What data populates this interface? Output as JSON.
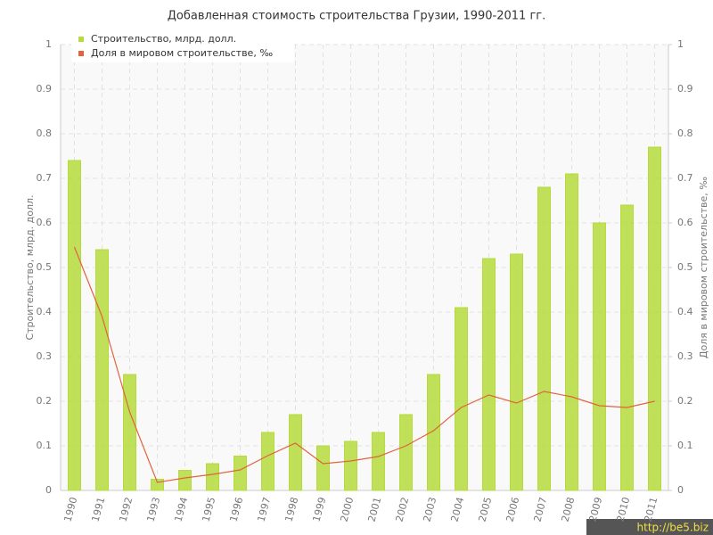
{
  "chart_data": {
    "type": "bar-line",
    "title": "Добавленная стоимость строительства Грузии, 1990-2011 гг.",
    "categories": [
      "1990",
      "1991",
      "1992",
      "1993",
      "1994",
      "1995",
      "1996",
      "1997",
      "1998",
      "1999",
      "2000",
      "2001",
      "2002",
      "2003",
      "2004",
      "2005",
      "2006",
      "2007",
      "2008",
      "2009",
      "2010",
      "2011"
    ],
    "series": [
      {
        "name": "Строительство, млрд. долл.",
        "type": "bar",
        "color": "#b5dc3c",
        "values": [
          0.74,
          0.54,
          0.26,
          0.025,
          0.045,
          0.06,
          0.077,
          0.13,
          0.17,
          0.1,
          0.11,
          0.13,
          0.17,
          0.26,
          0.41,
          0.52,
          0.53,
          0.68,
          0.71,
          0.6,
          0.64,
          0.77
        ]
      },
      {
        "name": "Доля в мировом строительстве, ‰",
        "type": "line",
        "axis": "y2",
        "color": "#e0643c",
        "values": [
          0.546,
          0.39,
          0.176,
          0.018,
          0.028,
          0.036,
          0.046,
          0.078,
          0.106,
          0.06,
          0.066,
          0.076,
          0.1,
          0.134,
          0.186,
          0.214,
          0.196,
          0.222,
          0.21,
          0.19,
          0.186,
          0.2
        ]
      }
    ],
    "ylabel": "Строительство, млрд. долл.",
    "y2label": "Доля в мировом строительстве, ‰",
    "ylim": [
      0,
      1
    ],
    "yticks": [
      0,
      0.1,
      0.2,
      0.3,
      0.4,
      0.5,
      0.6,
      0.7,
      0.8,
      0.9,
      1
    ],
    "y2lim": [
      0,
      1
    ],
    "y2ticks": [
      0,
      0.1,
      0.2,
      0.3,
      0.4,
      0.5,
      0.6,
      0.7,
      0.8,
      0.9,
      1
    ],
    "grid": true,
    "legend": "top-left",
    "watermark": "http://be5.biz"
  }
}
